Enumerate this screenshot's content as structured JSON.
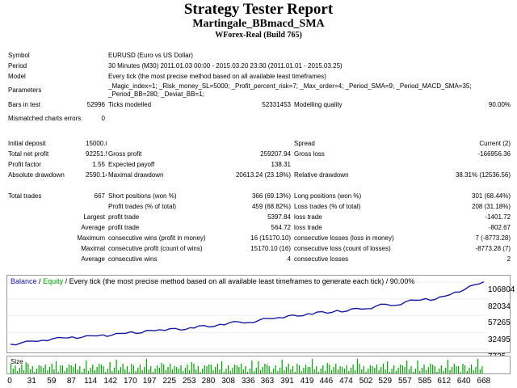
{
  "header": {
    "title": "Strategy Tester Report",
    "subtitle": "Martingale_BBmacd_SMA",
    "build": "WForex-Real (Build 765)"
  },
  "report": {
    "symbol_label": "Symbol",
    "symbol_value": "EURUSD (Euro vs US Dollar)",
    "period_label": "Period",
    "period_value": "30 Minutes (M30) 2011.01.03 00:00 - 2015.03.20 23:30 (2011.01.01 - 2015.03.25)",
    "model_label": "Model",
    "model_value": "Every tick (the most precise method based on all available least timeframes)",
    "parameters_label": "Parameters",
    "parameters_value": "_Magic_index=1; _Risk_money_SL=5000; _Profit_percent_risk=7; _Max_order=4; _Period_SMA=9; _Period_MACD_SMA=35; _Period_BB=280; _Deviat_BB=1;",
    "bars_label": "Bars in test",
    "bars_value": "52996",
    "ticks_label": "Ticks modelled",
    "ticks_value": "52331453",
    "quality_label": "Modelling quality",
    "quality_value": "90.00%",
    "mismatched_label": "Mismatched charts errors",
    "mismatched_value": "0",
    "initial_deposit_label": "Initial deposit",
    "initial_deposit_value": "15000.00",
    "spread_label": "Spread",
    "spread_value": "Current (2)",
    "net_profit_label": "Total net profit",
    "net_profit_value": "92251.58",
    "gross_profit_label": "Gross profit",
    "gross_profit_value": "259207.94",
    "gross_loss_label": "Gross loss",
    "gross_loss_value": "-166956.36",
    "profit_factor_label": "Profit factor",
    "profit_factor_value": "1.55",
    "expected_payoff_label": "Expected payoff",
    "expected_payoff_value": "138.31",
    "abs_drawdown_label": "Absolute drawdown",
    "abs_drawdown_value": "2590.14",
    "max_drawdown_label": "Maximal drawdown",
    "max_drawdown_value": "20613.24 (23.18%)",
    "rel_drawdown_label": "Relative drawdown",
    "rel_drawdown_value": "38.31% (12536.56)",
    "total_trades_label": "Total trades",
    "total_trades_value": "667",
    "short_label": "Short positions (won %)",
    "short_value": "366 (69.13%)",
    "long_label": "Long positions (won %)",
    "long_value": "301 (68.44%)",
    "profit_trades_label": "Profit trades (% of total)",
    "profit_trades_value": "459 (68.82%)",
    "loss_trades_label": "Loss trades (% of total)",
    "loss_trades_value": "208 (31.18%)",
    "largest_label": "Largest",
    "largest_profit_label": "profit trade",
    "largest_profit_value": "5397.84",
    "largest_loss_label": "loss trade",
    "largest_loss_value": "-1401.72",
    "average_label": "Average",
    "average_profit_label": "profit trade",
    "average_profit_value": "564.72",
    "average_loss_label": "loss trade",
    "average_loss_value": "-802.67",
    "maximum_label": "Maximum",
    "max_cons_wins_label": "consecutive wins (profit in money)",
    "max_cons_wins_value": "16 (15170.10)",
    "max_cons_losses_label": "consecutive losses (loss in money)",
    "max_cons_losses_value": "7 (-8773.28)",
    "maximal_label": "Maximal",
    "maximal_profit_label": "consecutive profit (count of wins)",
    "maximal_profit_value": "15170.10 (16)",
    "maximal_loss_label": "consecutive loss (count of losses)",
    "maximal_loss_value": "-8773.28 (7)",
    "average2_label": "Average",
    "avg_cons_wins_label": "consecutive wins",
    "avg_cons_wins_value": "4",
    "avg_cons_losses_label": "consecutive losses",
    "avg_cons_losses_value": "2"
  },
  "chart_legend": {
    "balance": "Balance",
    "separator": "/",
    "equity": "Equity",
    "rest": "/ Every tick (the most precise method based on all available least timeframes to generate each tick) / 90.00%"
  },
  "size_label": "Size",
  "colors": {
    "balance_line": "#1a1aa0",
    "equity_line": "#00a000",
    "size_bars": "#00a000"
  },
  "chart_data": {
    "type": "line",
    "x_ticks": [
      "0",
      "31",
      "59",
      "87",
      "114",
      "142",
      "170",
      "197",
      "225",
      "253",
      "280",
      "308",
      "336",
      "363",
      "391",
      "419",
      "446",
      "474",
      "502",
      "529",
      "557",
      "585",
      "612",
      "640",
      "668"
    ],
    "y_ticks": [
      "106804",
      "82034",
      "57265",
      "32495",
      "7725"
    ],
    "ylim": [
      7725,
      106804
    ],
    "xlim": [
      0,
      667
    ],
    "series": [
      {
        "name": "Balance",
        "x": [
          0,
          15,
          31,
          45,
          59,
          75,
          87,
          100,
          114,
          130,
          142,
          155,
          170,
          185,
          197,
          210,
          225,
          240,
          253,
          265,
          280,
          295,
          308,
          322,
          336,
          350,
          363,
          378,
          391,
          405,
          419,
          432,
          446,
          460,
          474,
          488,
          502,
          515,
          529,
          543,
          557,
          571,
          585,
          598,
          612,
          626,
          640,
          654,
          667
        ],
        "y": [
          15000,
          17000,
          19500,
          21000,
          23000,
          24500,
          26000,
          25000,
          27500,
          29000,
          28000,
          31000,
          33500,
          32000,
          35500,
          36500,
          38000,
          36000,
          39500,
          42000,
          40500,
          44500,
          46500,
          48000,
          47000,
          50500,
          53000,
          54500,
          57000,
          56500,
          60000,
          62500,
          61000,
          65000,
          64000,
          68000,
          67500,
          71500,
          74000,
          72500,
          78000,
          80000,
          82500,
          81000,
          86000,
          92000,
          96000,
          103000,
          107251
        ]
      }
    ]
  }
}
